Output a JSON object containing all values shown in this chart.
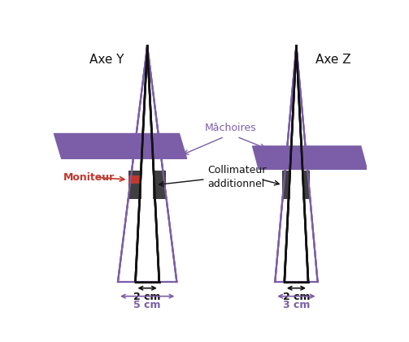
{
  "bg_color": "#ffffff",
  "purple_color": "#7B5EA7",
  "dark_gray": "#404040",
  "red_color": "#c0392b",
  "black": "#111111",
  "axe_y_label": "Axe Y",
  "axe_z_label": "Axe Z",
  "machoires_label": "Mâchoires",
  "moniteur_label": "Moniteur",
  "collimateur_label": "Collimateur\nadditionnel",
  "dim_2cm_left": "2 cm",
  "dim_5cm": "5 cm",
  "dim_2cm_right": "2 cm",
  "dim_3cm": "3 cm"
}
